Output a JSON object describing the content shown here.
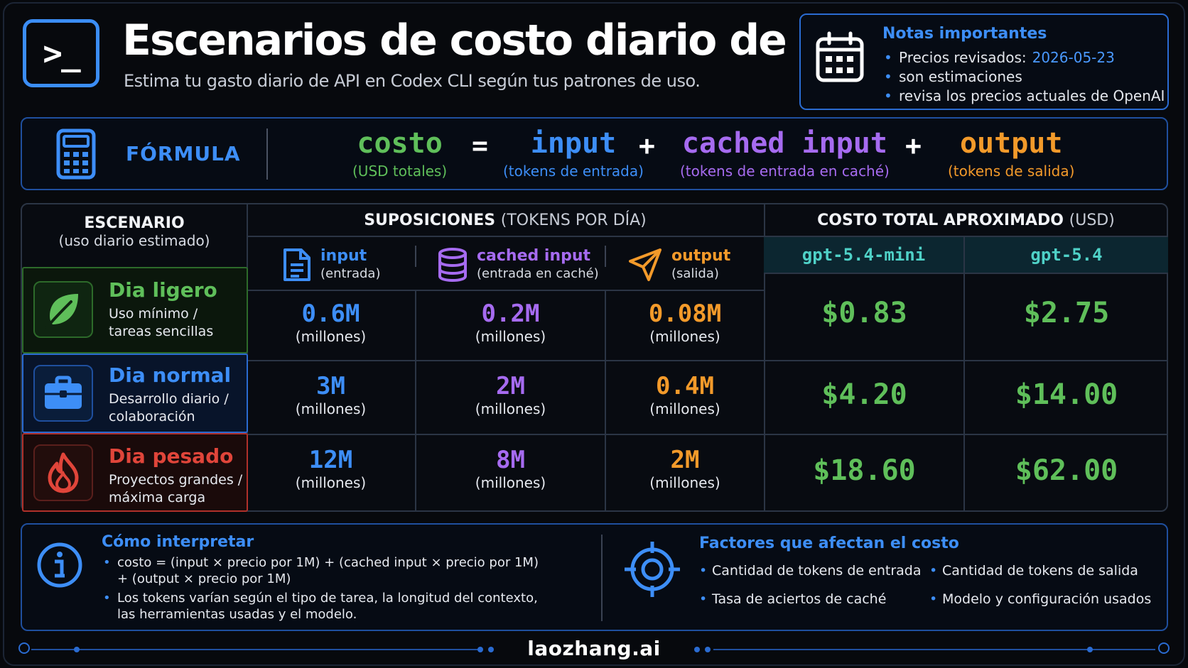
{
  "header": {
    "logo_text": ">_",
    "title": "Escenarios de costo diario de API",
    "subtitle": "Estima tu gasto diario de API en Codex CLI según tus patrones de uso."
  },
  "notes": {
    "title": "Notas importantes",
    "item1_label": "Precios revisados:",
    "item1_date": "2026-05-23",
    "item2": "son estimaciones",
    "item3": "revisa los precios actuales de OpenAI"
  },
  "formula": {
    "label": "FÓRMULA",
    "cost": "costo",
    "cost_sub": "(USD totales)",
    "eq": "=",
    "input": "input",
    "input_sub": "(tokens de entrada)",
    "plus": "+",
    "cached": "cached input",
    "cached_sub": "(tokens de entrada en caché)",
    "output": "output",
    "output_sub": "(tokens de salida)"
  },
  "table": {
    "scenario_head": "ESCENARIO",
    "scenario_sub": "(uso diario estimado)",
    "assump_head": "SUPOSICIONES",
    "assump_sub": "(TOKENS POR DÍA)",
    "cost_head": "COSTO TOTAL APROXIMADO",
    "cost_sub": "(USD)",
    "models": [
      "gpt-5.4-mini",
      "gpt-5.4"
    ],
    "columns": [
      {
        "title": "input",
        "sub": "(entrada)"
      },
      {
        "title": "cached input",
        "sub": "(entrada en caché)"
      },
      {
        "title": "output",
        "sub": "(salida)"
      }
    ],
    "unit": "(millones)",
    "rows": [
      {
        "name": "Dia ligero",
        "desc1": "Uso mínimo /",
        "desc2": "tareas sencillas",
        "input": "0.6M",
        "cached": "0.2M",
        "output": "0.08M",
        "mini": "$0.83",
        "full": "$2.75"
      },
      {
        "name": "Dia normal",
        "desc1": "Desarrollo diario /",
        "desc2": "colaboración",
        "input": "3M",
        "cached": "2M",
        "output": "0.4M",
        "mini": "$4.20",
        "full": "$14.00"
      },
      {
        "name": "Dia pesado",
        "desc1": "Proyectos grandes /",
        "desc2": "máxima carga",
        "input": "12M",
        "cached": "8M",
        "output": "2M",
        "mini": "$18.60",
        "full": "$62.00"
      }
    ]
  },
  "interpret": {
    "title": "Cómo interpretar",
    "b1_l1": "costo = (input × precio por 1M) + (cached input × precio por 1M)",
    "b1_l2": "+ (output × precio por 1M)",
    "b2_l1": "Los tokens varían según el tipo de tarea, la longitud del contexto,",
    "b2_l2": "las herramientas usadas y el modelo."
  },
  "factors": {
    "title": "Factores que afectan el costo",
    "f1": "Cantidad de tokens de entrada",
    "f2": "Cantidad de tokens de salida",
    "f3": "Tasa de aciertos de caché",
    "f4": "Modelo y configuración usados"
  },
  "footer": {
    "brand": "laozhang.ai"
  },
  "colors": {
    "green": "#5fbf5a",
    "blue": "#3d8ef7",
    "purple": "#a66bf0",
    "orange": "#f39a2a",
    "teal": "#4fd1c7",
    "red": "#e0453a"
  },
  "icons": [
    "terminal-icon",
    "calendar-icon",
    "calculator-icon",
    "file-icon",
    "database-icon",
    "send-icon",
    "leaf-icon",
    "briefcase-icon",
    "flame-icon",
    "info-icon",
    "target-icon"
  ]
}
